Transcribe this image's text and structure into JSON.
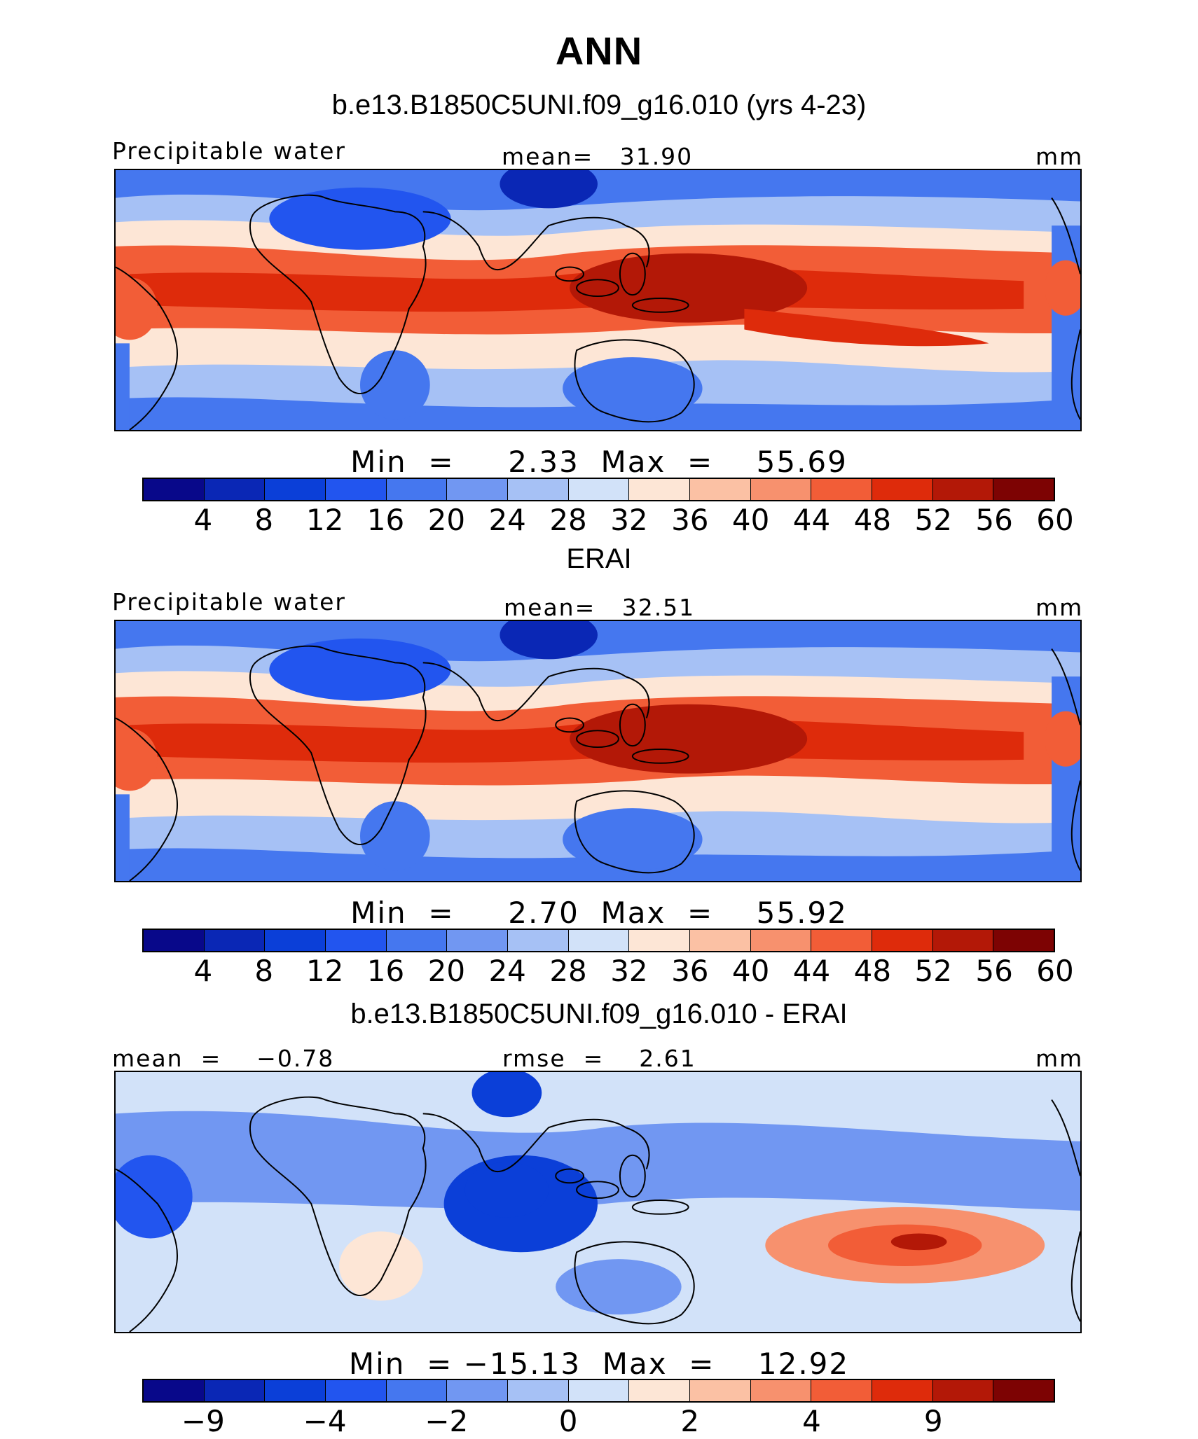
{
  "title": "ANN",
  "chart_data": [
    {
      "type": "heatmap",
      "title": "b.e13.B1850C5UNI.f09_g16.010 (yrs 4-23)",
      "left_label": "Precipitable water",
      "center_label": "mean=   31.90",
      "units": "mm",
      "min_max_label": "Min  =     2.33  Max  =    55.69",
      "colorbar": {
        "levels": [
          "4",
          "8",
          "12",
          "16",
          "20",
          "24",
          "28",
          "32",
          "36",
          "40",
          "44",
          "48",
          "52",
          "56",
          "60"
        ],
        "colors": [
          "#08088a",
          "#0a27b5",
          "#0b3fd8",
          "#2255ef",
          "#4577ef",
          "#7197f2",
          "#a6c1f5",
          "#d2e2f9",
          "#fde6d6",
          "#fbc1a4",
          "#f7916e",
          "#f25d37",
          "#de2b0b",
          "#b31807",
          "#7d0303"
        ]
      },
      "regions": {
        "min": 2.33,
        "max": 55.69,
        "tropics_max": 54,
        "warm_pool": 52,
        "south_pacific_tongue": 50,
        "subtropics": 30,
        "mid_latitudes": 20,
        "tibet_sahara_min": 6
      }
    },
    {
      "type": "heatmap",
      "title": "ERAI",
      "left_label": "Precipitable water",
      "center_label": "mean=   32.51",
      "units": "mm",
      "min_max_label": "Min  =     2.70  Max  =    55.92",
      "colorbar": {
        "levels": [
          "4",
          "8",
          "12",
          "16",
          "20",
          "24",
          "28",
          "32",
          "36",
          "40",
          "44",
          "48",
          "52",
          "56",
          "60"
        ],
        "colors": [
          "#08088a",
          "#0a27b5",
          "#0b3fd8",
          "#2255ef",
          "#4577ef",
          "#7197f2",
          "#a6c1f5",
          "#d2e2f9",
          "#fde6d6",
          "#fbc1a4",
          "#f7916e",
          "#f25d37",
          "#de2b0b",
          "#b31807",
          "#7d0303"
        ]
      },
      "regions": {
        "min": 2.7,
        "max": 55.92,
        "tropics_max": 55,
        "warm_pool": 55,
        "subtropics": 32,
        "mid_latitudes": 20,
        "tibet_sahara_min": 6
      }
    },
    {
      "type": "heatmap",
      "title": "b.e13.B1850C5UNI.f09_g16.010 - ERAI",
      "left_label": "mean  =    −0.78",
      "center_label": "rmse  =    2.61",
      "units": "mm",
      "min_max_label": "Min  = −15.13  Max  =    12.92",
      "colorbar": {
        "levels": [
          "−9",
          "",
          "−4",
          "",
          "−2",
          "",
          "0",
          "",
          "2",
          "",
          "4",
          "",
          "9",
          "",
          ""
        ],
        "colors": [
          "#08088a",
          "#0a27b5",
          "#0b3fd8",
          "#2255ef",
          "#4577ef",
          "#7197f2",
          "#a6c1f5",
          "#d2e2f9",
          "#fde6d6",
          "#fbc1a4",
          "#f7916e",
          "#f25d37",
          "#de2b0b",
          "#b31807",
          "#7d0303"
        ]
      },
      "regions": {
        "min": -15.13,
        "max": 12.92,
        "indian_ocean_dry_bias": -6,
        "south_pacific_wet_bias": 9,
        "background": 0.5
      }
    }
  ]
}
